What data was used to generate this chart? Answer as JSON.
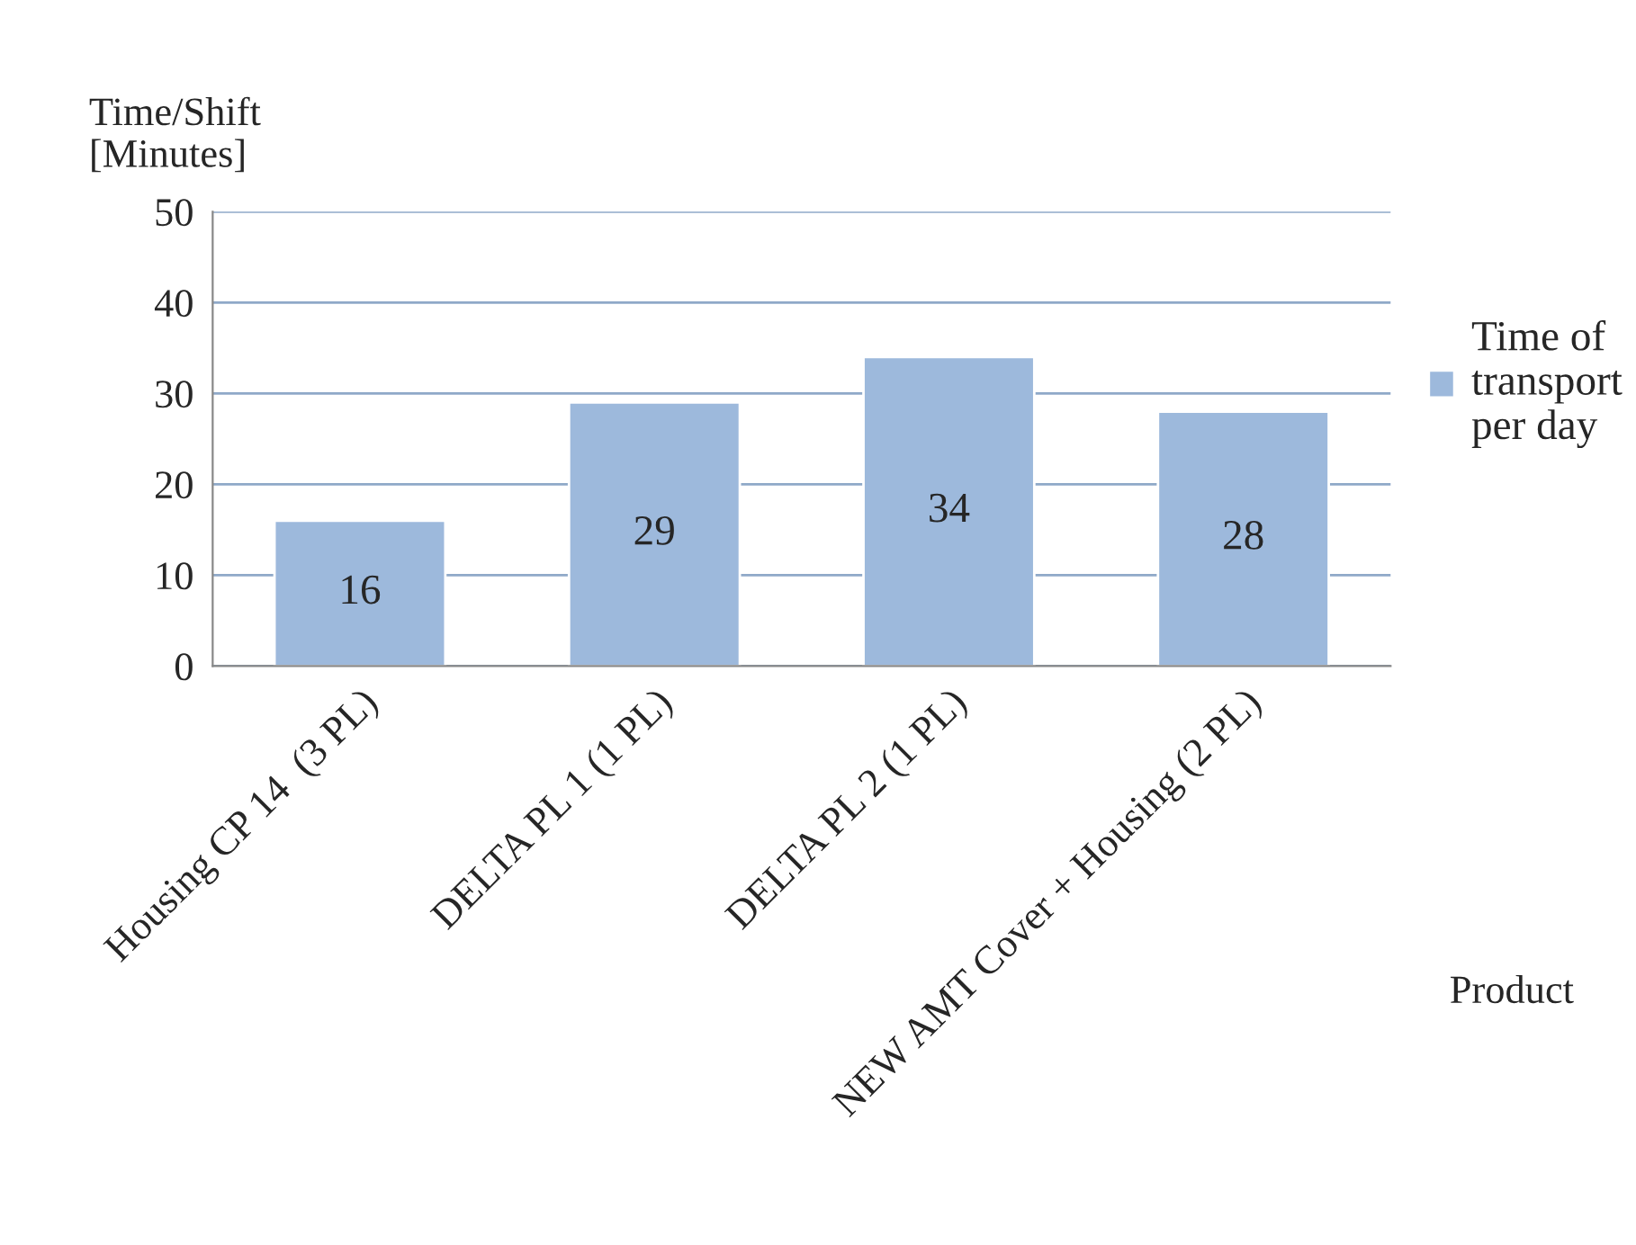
{
  "chart_data": {
    "type": "bar",
    "xlabel": "Product",
    "ylabel": "Time/Shift\n[Minutes]",
    "categories": [
      "Housing CP 14  (3 PL)",
      "DELTA PL 1 (1 PL)",
      "DELTA PL 2 (1 PL)",
      "NEW AMT Cover + Housing (2 PL)"
    ],
    "series": [
      {
        "name": "Time of\ntransport\nper day",
        "color": "#9db9dc",
        "values": [
          16,
          29,
          34,
          28
        ]
      }
    ],
    "ylim": [
      0,
      50
    ],
    "yticks": [
      0,
      10,
      20,
      30,
      40,
      50
    ],
    "grid": "y",
    "legend": "right",
    "data_labels": true
  }
}
